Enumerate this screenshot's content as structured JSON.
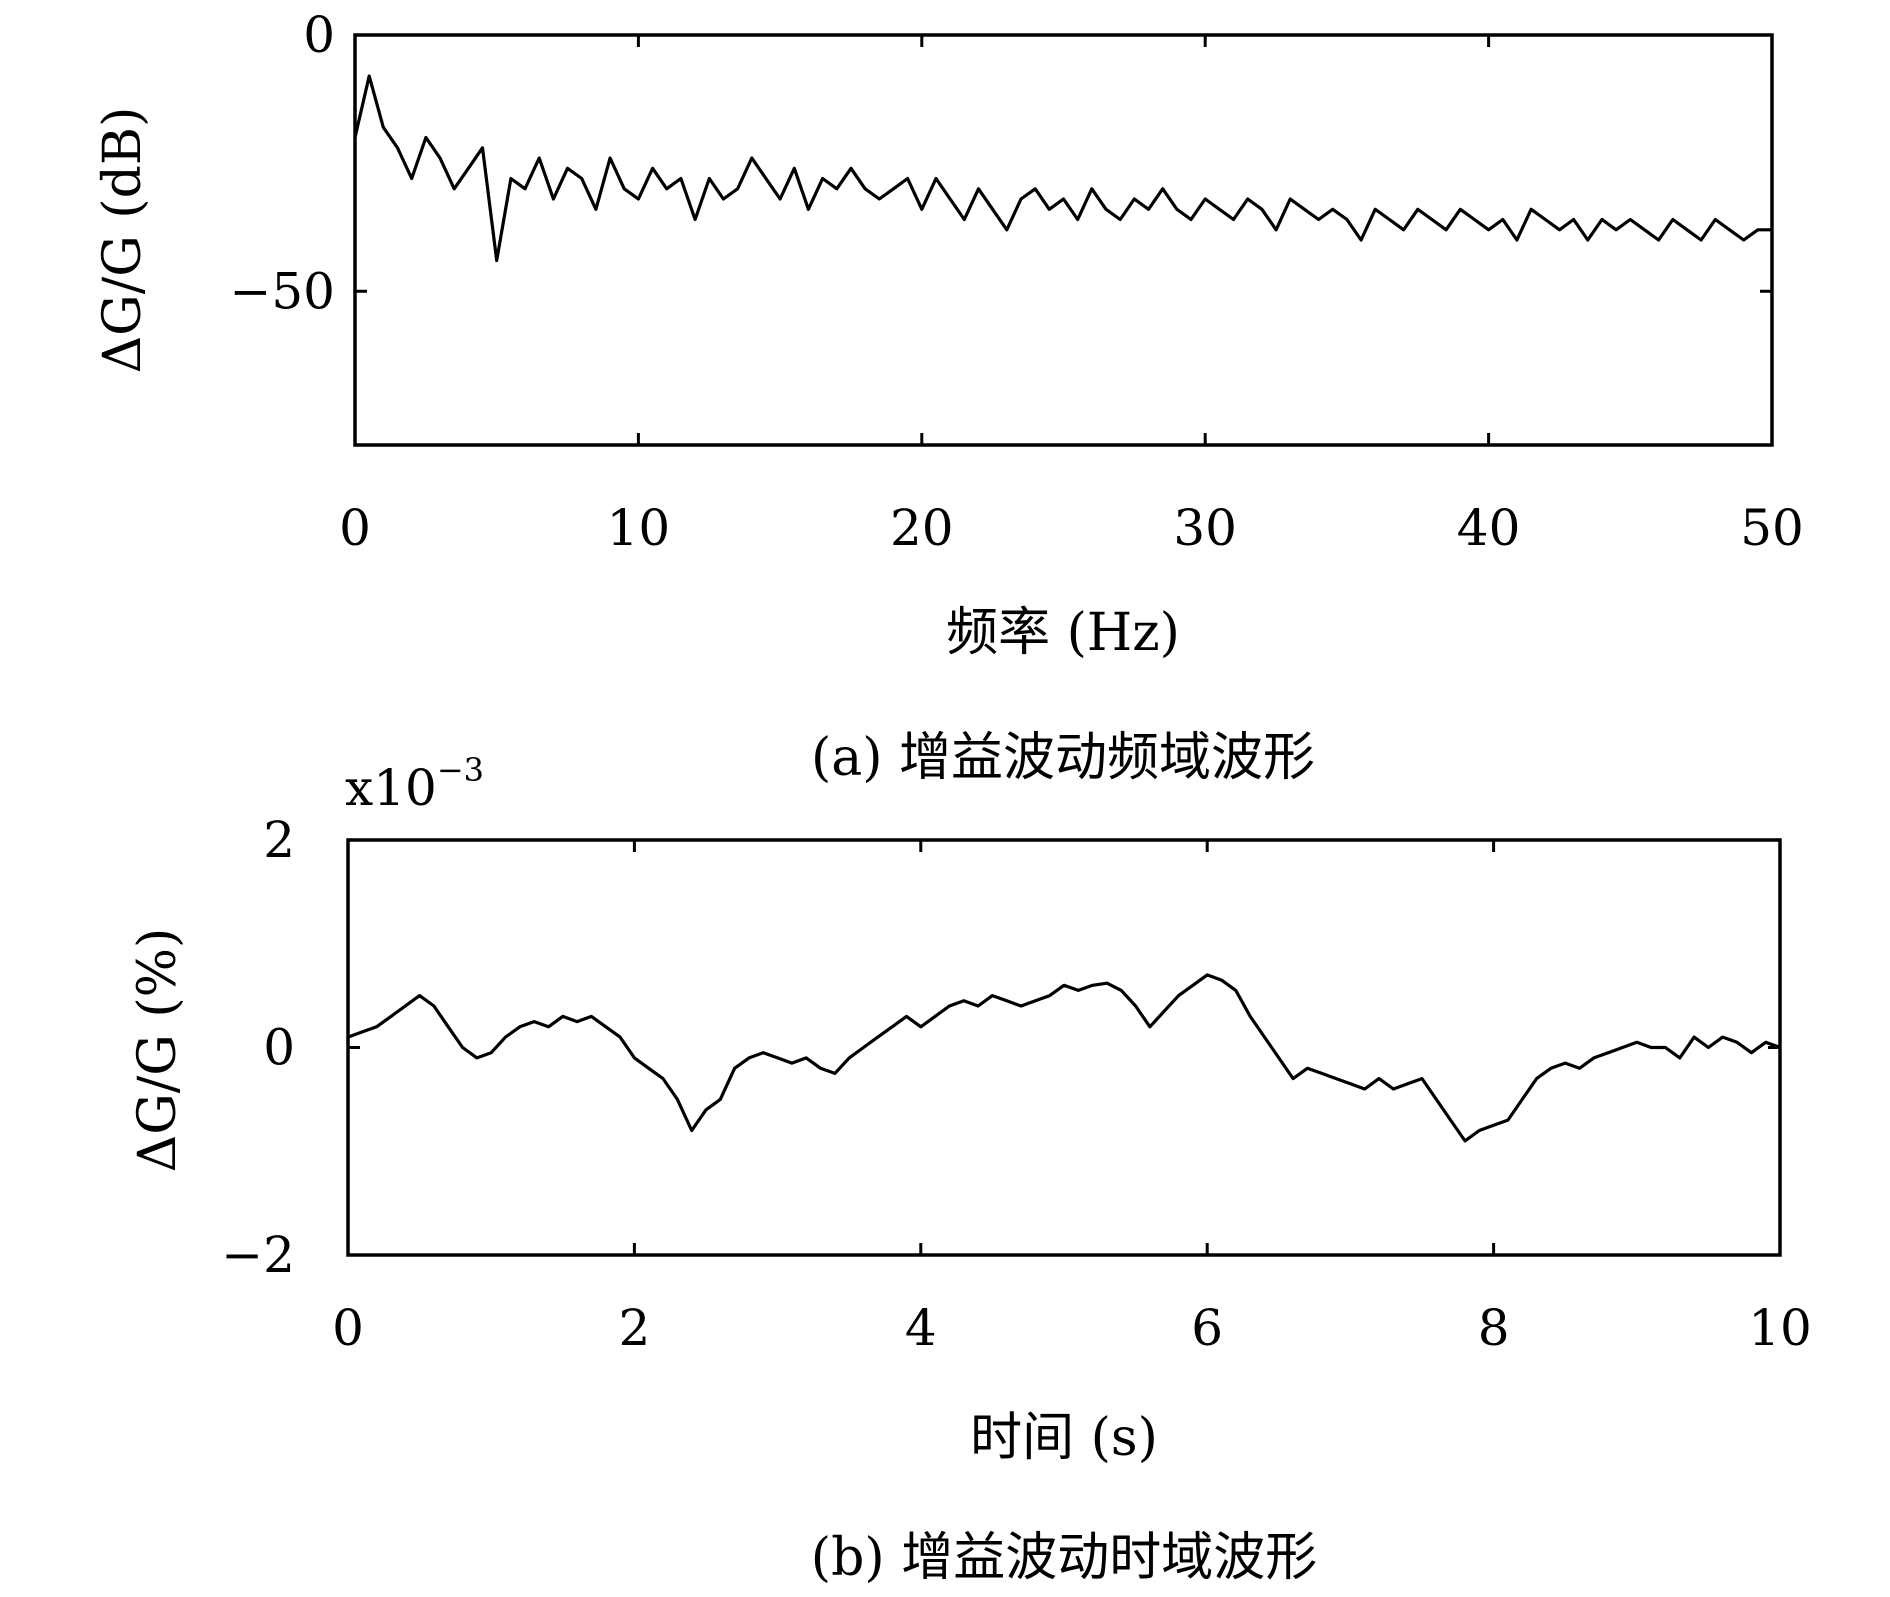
{
  "chart_data": [
    {
      "type": "line",
      "xlabel": "频率 (Hz)",
      "ylabel": "ΔG/G (dB)",
      "caption": "(a) 增益波动频域波形",
      "xlim": [
        0,
        50
      ],
      "ylim": [
        -80,
        0
      ],
      "xticks": [
        0,
        10,
        20,
        30,
        40,
        50
      ],
      "yticks": [
        0,
        -50
      ],
      "xtick_labels": [
        "0",
        "10",
        "20",
        "30",
        "40",
        "50"
      ],
      "ytick_labels": [
        "0",
        "−50"
      ],
      "grid": false,
      "series": [
        {
          "x": [
            0,
            0.5,
            1,
            1.5,
            2,
            2.5,
            3,
            3.5,
            4,
            4.5,
            5,
            5.5,
            6,
            6.5,
            7,
            7.5,
            8,
            8.5,
            9,
            9.5,
            10,
            10.5,
            11,
            11.5,
            12,
            12.5,
            13,
            13.5,
            14,
            14.5,
            15,
            15.5,
            16,
            16.5,
            17,
            17.5,
            18,
            18.5,
            19,
            19.5,
            20,
            20.5,
            21,
            21.5,
            22,
            22.5,
            23,
            23.5,
            24,
            24.5,
            25,
            25.5,
            26,
            26.5,
            27,
            27.5,
            28,
            28.5,
            29,
            29.5,
            30,
            30.5,
            31,
            31.5,
            32,
            32.5,
            33,
            33.5,
            34,
            34.5,
            35,
            35.5,
            36,
            36.5,
            37,
            37.5,
            38,
            38.5,
            39,
            39.5,
            40,
            40.5,
            41,
            41.5,
            42,
            42.5,
            43,
            43.5,
            44,
            44.5,
            45,
            45.5,
            46,
            46.5,
            47,
            47.5,
            48,
            48.5,
            49,
            49.5,
            50
          ],
          "values": [
            -20,
            -8,
            -18,
            -22,
            -28,
            -20,
            -24,
            -30,
            -26,
            -22,
            -44,
            -28,
            -30,
            -24,
            -32,
            -26,
            -28,
            -34,
            -24,
            -30,
            -32,
            -26,
            -30,
            -28,
            -36,
            -28,
            -32,
            -30,
            -24,
            -28,
            -32,
            -26,
            -34,
            -28,
            -30,
            -26,
            -30,
            -32,
            -30,
            -28,
            -34,
            -28,
            -32,
            -36,
            -30,
            -34,
            -38,
            -32,
            -30,
            -34,
            -32,
            -36,
            -30,
            -34,
            -36,
            -32,
            -34,
            -30,
            -34,
            -36,
            -32,
            -34,
            -36,
            -32,
            -34,
            -38,
            -32,
            -34,
            -36,
            -34,
            -36,
            -40,
            -34,
            -36,
            -38,
            -34,
            -36,
            -38,
            -34,
            -36,
            -38,
            -36,
            -40,
            -34,
            -36,
            -38,
            -36,
            -40,
            -36,
            -38,
            -36,
            -38,
            -40,
            -36,
            -38,
            -40,
            -36,
            -38,
            -40,
            -38,
            -38
          ]
        }
      ]
    },
    {
      "type": "line",
      "xlabel": "时间 (s)",
      "ylabel": "ΔG/G (%)",
      "caption": "(b) 增益波动时域波形",
      "multiplier_label": "x10",
      "multiplier_exponent": "−3",
      "xlim": [
        0,
        10
      ],
      "ylim": [
        -2,
        2
      ],
      "xticks": [
        0,
        2,
        4,
        6,
        8,
        10
      ],
      "yticks": [
        2,
        0,
        -2
      ],
      "xtick_labels": [
        "0",
        "2",
        "4",
        "6",
        "8",
        "10"
      ],
      "ytick_labels": [
        "2",
        "0",
        "−2"
      ],
      "grid": false,
      "series": [
        {
          "x": [
            0,
            0.1,
            0.2,
            0.3,
            0.4,
            0.5,
            0.6,
            0.7,
            0.8,
            0.9,
            1.0,
            1.1,
            1.2,
            1.3,
            1.4,
            1.5,
            1.6,
            1.7,
            1.8,
            1.9,
            2.0,
            2.1,
            2.2,
            2.3,
            2.4,
            2.5,
            2.6,
            2.7,
            2.8,
            2.9,
            3.0,
            3.1,
            3.2,
            3.3,
            3.4,
            3.5,
            3.6,
            3.7,
            3.8,
            3.9,
            4.0,
            4.1,
            4.2,
            4.3,
            4.4,
            4.5,
            4.6,
            4.7,
            4.8,
            4.9,
            5.0,
            5.1,
            5.2,
            5.3,
            5.4,
            5.5,
            5.6,
            5.7,
            5.8,
            5.9,
            6.0,
            6.1,
            6.2,
            6.3,
            6.4,
            6.5,
            6.6,
            6.7,
            6.8,
            6.9,
            7.0,
            7.1,
            7.2,
            7.3,
            7.4,
            7.5,
            7.6,
            7.7,
            7.8,
            7.9,
            8.0,
            8.1,
            8.2,
            8.3,
            8.4,
            8.5,
            8.6,
            8.7,
            8.8,
            8.9,
            9.0,
            9.1,
            9.2,
            9.3,
            9.4,
            9.5,
            9.6,
            9.7,
            9.8,
            9.9,
            10.0
          ],
          "values": [
            0.1,
            0.15,
            0.2,
            0.3,
            0.4,
            0.5,
            0.4,
            0.2,
            0.0,
            -0.1,
            -0.05,
            0.1,
            0.2,
            0.25,
            0.2,
            0.3,
            0.25,
            0.3,
            0.2,
            0.1,
            -0.1,
            -0.2,
            -0.3,
            -0.5,
            -0.8,
            -0.6,
            -0.5,
            -0.2,
            -0.1,
            -0.05,
            -0.1,
            -0.15,
            -0.1,
            -0.2,
            -0.25,
            -0.1,
            0.0,
            0.1,
            0.2,
            0.3,
            0.2,
            0.3,
            0.4,
            0.45,
            0.4,
            0.5,
            0.45,
            0.4,
            0.45,
            0.5,
            0.6,
            0.55,
            0.6,
            0.62,
            0.55,
            0.4,
            0.2,
            0.35,
            0.5,
            0.6,
            0.7,
            0.65,
            0.55,
            0.3,
            0.1,
            -0.1,
            -0.3,
            -0.2,
            -0.25,
            -0.3,
            -0.35,
            -0.4,
            -0.3,
            -0.4,
            -0.35,
            -0.3,
            -0.5,
            -0.7,
            -0.9,
            -0.8,
            -0.75,
            -0.7,
            -0.5,
            -0.3,
            -0.2,
            -0.15,
            -0.2,
            -0.1,
            -0.05,
            0.0,
            0.05,
            0.0,
            0.0,
            -0.1,
            0.1,
            0.0,
            0.1,
            0.05,
            -0.05,
            0.05,
            0.0
          ]
        }
      ]
    }
  ]
}
